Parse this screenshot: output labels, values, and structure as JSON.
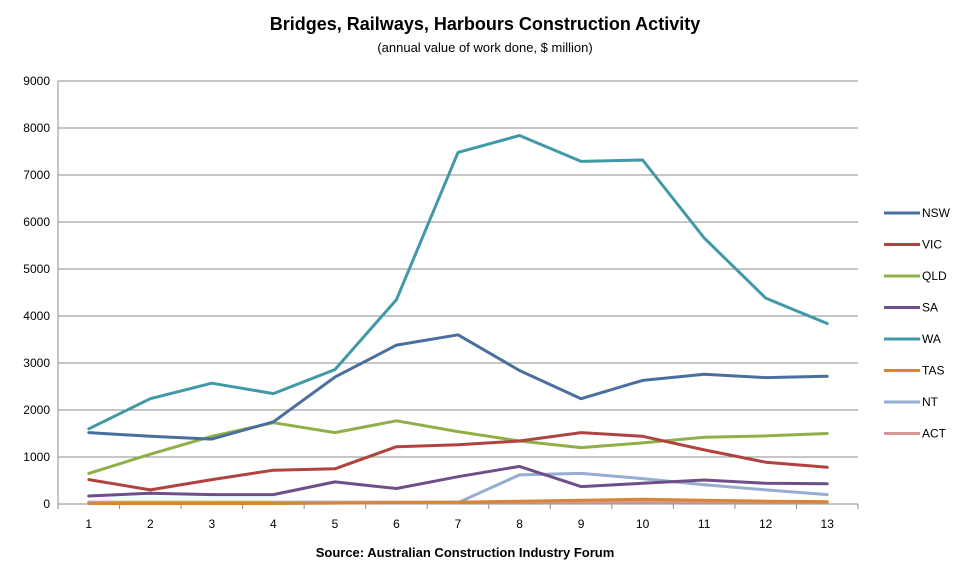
{
  "chart_data": {
    "type": "line",
    "title": "Bridges, Railways, Harbours Construction  Activity",
    "subtitle": "(annual value of work done, $ million)",
    "source": "Source: Australian  Construction  Industry Forum",
    "x": [
      "1",
      "2",
      "3",
      "4",
      "5",
      "6",
      "7",
      "8",
      "9",
      "10",
      "11",
      "12",
      "13"
    ],
    "ylim": [
      0,
      9000
    ],
    "yticks": [
      0,
      1000,
      2000,
      3000,
      4000,
      5000,
      6000,
      7000,
      8000,
      9000
    ],
    "grid": true,
    "legend_position": "right",
    "series": [
      {
        "name": "NSW",
        "color": "#4a6f9c",
        "values": [
          1520,
          1440,
          1380,
          1750,
          2700,
          3380,
          3600,
          2840,
          2240,
          2630,
          2760,
          2690,
          2720
        ]
      },
      {
        "name": "VIC",
        "color": "#b0433f",
        "values": [
          520,
          300,
          520,
          720,
          750,
          1220,
          1260,
          1340,
          1520,
          1440,
          1150,
          890,
          780
        ]
      },
      {
        "name": "QLD",
        "color": "#8fb049",
        "values": [
          650,
          1060,
          1440,
          1730,
          1520,
          1770,
          1540,
          1340,
          1200,
          1300,
          1420,
          1450,
          1500
        ]
      },
      {
        "name": "SA",
        "color": "#6e4f8a",
        "values": [
          170,
          230,
          200,
          200,
          470,
          330,
          580,
          800,
          370,
          440,
          510,
          440,
          430
        ]
      },
      {
        "name": "WA",
        "color": "#4199a8",
        "values": [
          1600,
          2240,
          2570,
          2350,
          2860,
          4350,
          7480,
          7840,
          7290,
          7320,
          5660,
          4380,
          3840
        ]
      },
      {
        "name": "TAS",
        "color": "#d98535",
        "values": [
          10,
          10,
          10,
          10,
          20,
          30,
          40,
          60,
          80,
          100,
          80,
          60,
          50
        ]
      },
      {
        "name": "NT",
        "color": "#96acd0",
        "values": [
          30,
          30,
          30,
          30,
          30,
          30,
          30,
          620,
          650,
          540,
          410,
          300,
          200
        ]
      },
      {
        "name": "ACT",
        "color": "#d49997",
        "values": [
          40,
          40,
          40,
          40,
          40,
          40,
          40,
          40,
          40,
          40,
          40,
          40,
          40
        ]
      }
    ]
  }
}
